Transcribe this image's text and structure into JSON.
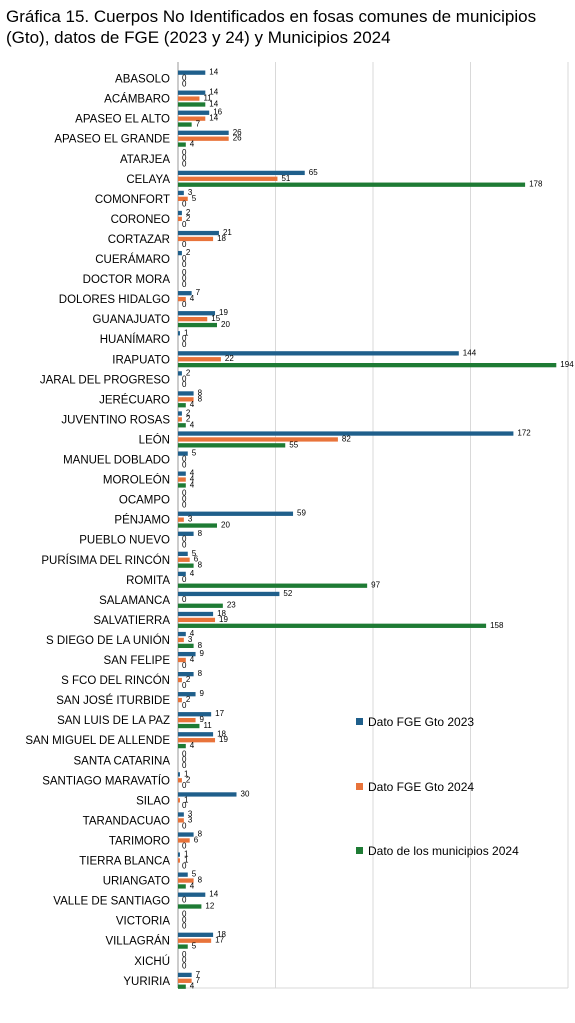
{
  "chart_data": {
    "type": "bar",
    "orientation": "horizontal",
    "title": "Gráfica 15. Cuerpos No Identificados en fosas comunes de municipios (Gto), datos de FGE (2023 y 24) y Municipios 2024",
    "xlim": [
      0,
      200
    ],
    "grid": true,
    "legend_position": "right",
    "categories": [
      "ABASOLO",
      "ACÁMBARO",
      "APASEO EL ALTO",
      "APASEO EL GRANDE",
      "ATARJEA",
      "CELAYA",
      "COMONFORT",
      "CORONEO",
      "CORTAZAR",
      "CUERÁMARO",
      "DOCTOR MORA",
      "DOLORES HIDALGO",
      "GUANAJUATO",
      "HUANÍMARO",
      "IRAPUATO",
      "JARAL DEL PROGRESO",
      "JERÉCUARO",
      "JUVENTINO ROSAS",
      "LEÓN",
      "MANUEL DOBLADO",
      "MOROLEÓN",
      "OCAMPO",
      "PÉNJAMO",
      "PUEBLO NUEVO",
      "PURÍSIMA DEL RINCÓN",
      "ROMITA",
      "SALAMANCA",
      "SALVATIERRA",
      "S DIEGO DE LA UNIÓN",
      "SAN FELIPE",
      "S FCO DEL RINCÓN",
      "SAN JOSÉ ITURBIDE",
      "SAN LUIS DE LA PAZ",
      "SAN MIGUEL DE ALLENDE",
      "SANTA CATARINA",
      "SANTIAGO MARAVATÍO",
      "SILAO",
      "TARANDACUAO",
      "TARIMORO",
      "TIERRA BLANCA",
      "URIANGATO",
      "VALLE DE SANTIAGO",
      "VICTORIA",
      "VILLAGRÁN",
      "XICHÚ",
      "YURIRIA"
    ],
    "series": [
      {
        "name": "Dato FGE Gto 2023",
        "color": "#1f5f8b",
        "values": [
          14,
          14,
          16,
          26,
          0,
          65,
          3,
          2,
          21,
          2,
          0,
          7,
          19,
          1,
          144,
          2,
          8,
          2,
          172,
          5,
          4,
          0,
          59,
          8,
          5,
          4,
          52,
          18,
          4,
          9,
          8,
          9,
          17,
          18,
          0,
          1,
          30,
          3,
          8,
          1,
          5,
          14,
          0,
          18,
          0,
          7
        ]
      },
      {
        "name": "Dato FGE Gto 2024",
        "color": "#e8733a",
        "values": [
          0,
          11,
          14,
          26,
          0,
          51,
          5,
          2,
          18,
          0,
          0,
          4,
          15,
          0,
          22,
          0,
          8,
          2,
          82,
          0,
          4,
          0,
          3,
          0,
          6,
          0,
          0,
          19,
          3,
          4,
          2,
          2,
          9,
          19,
          0,
          2,
          1,
          3,
          6,
          1,
          8,
          0,
          0,
          17,
          0,
          7
        ]
      },
      {
        "name": "Dato de los municipios 2024",
        "color": "#1e7b34",
        "values": [
          0,
          14,
          7,
          4,
          0,
          178,
          0,
          0,
          0,
          0,
          0,
          0,
          20,
          0,
          194,
          0,
          4,
          4,
          55,
          0,
          4,
          0,
          20,
          0,
          8,
          97,
          23,
          158,
          8,
          0,
          0,
          0,
          11,
          4,
          0,
          0,
          0,
          0,
          0,
          0,
          4,
          12,
          0,
          5,
          0,
          4
        ]
      }
    ]
  }
}
